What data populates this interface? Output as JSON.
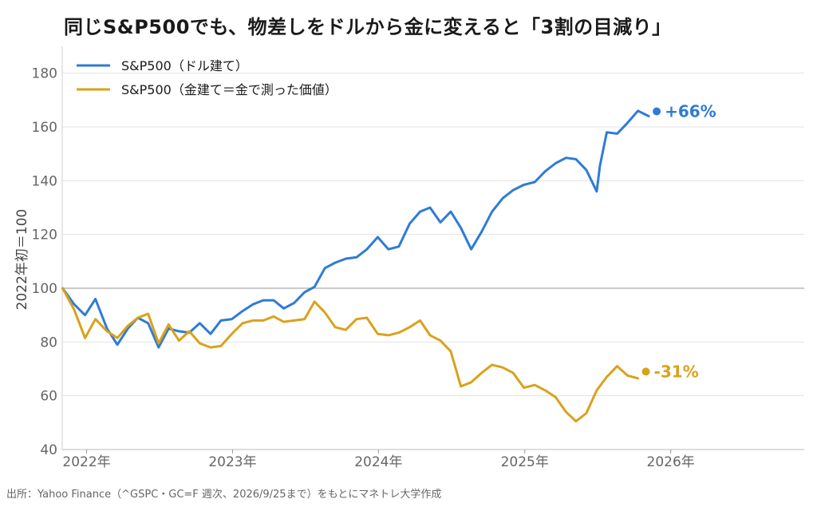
{
  "title": "同じS&P500でも、物差しをドルから金に変えると「3割の目減り」",
  "source": "出所：Yahoo Finance（^GSPC・GC=F 週次、2026/9/25まで）をもとにマネトレ大学作成",
  "chart_data": {
    "type": "line",
    "ylabel": "2022年初＝100",
    "ylim": [
      40,
      190
    ],
    "yticks": [
      40,
      60,
      80,
      100,
      120,
      140,
      160,
      180
    ],
    "x_start": "2021-11",
    "x_end": "2026-12",
    "x_ticks": [
      {
        "date": "2022-01",
        "label": "2022年"
      },
      {
        "date": "2023-01",
        "label": "2023年"
      },
      {
        "date": "2024-01",
        "label": "2024年"
      },
      {
        "date": "2025-01",
        "label": "2025年"
      },
      {
        "date": "2026-01",
        "label": "2026年"
      }
    ],
    "grid": true,
    "reference_line": 100,
    "legend_position": "top-left",
    "series": [
      {
        "name": "S&P500（ドル建て）",
        "color": "#2f7bd6",
        "end_label": "+66%",
        "end_marker": 165.8,
        "points": [
          [
            "2021-11-02",
            100.0
          ],
          [
            "2021-12-01",
            94.0
          ],
          [
            "2021-12-28",
            90.0
          ],
          [
            "2022-01-23",
            96.0
          ],
          [
            "2022-02-21",
            85.0
          ],
          [
            "2022-03-19",
            79.0
          ],
          [
            "2022-04-14",
            85.0
          ],
          [
            "2022-05-09",
            89.0
          ],
          [
            "2022-06-04",
            87.0
          ],
          [
            "2022-06-30",
            78.0
          ],
          [
            "2022-07-25",
            85.0
          ],
          [
            "2022-08-20",
            84.0
          ],
          [
            "2022-09-15",
            83.5
          ],
          [
            "2022-10-11",
            87.0
          ],
          [
            "2022-11-07",
            83.0
          ],
          [
            "2022-12-03",
            88.0
          ],
          [
            "2022-12-30",
            88.5
          ],
          [
            "2023-01-26",
            91.5
          ],
          [
            "2023-02-21",
            94.0
          ],
          [
            "2023-03-19",
            95.5
          ],
          [
            "2023-04-14",
            95.5
          ],
          [
            "2023-05-09",
            92.5
          ],
          [
            "2023-06-04",
            94.5
          ],
          [
            "2023-06-30",
            98.5
          ],
          [
            "2023-07-25",
            100.5
          ],
          [
            "2023-08-20",
            107.5
          ],
          [
            "2023-09-15",
            109.5
          ],
          [
            "2023-10-11",
            111.0
          ],
          [
            "2023-11-07",
            111.5
          ],
          [
            "2023-12-03",
            114.5
          ],
          [
            "2023-12-30",
            119.0
          ],
          [
            "2024-01-26",
            114.5
          ],
          [
            "2024-02-21",
            115.5
          ],
          [
            "2024-03-19",
            124.0
          ],
          [
            "2024-04-14",
            128.5
          ],
          [
            "2024-05-09",
            130.0
          ],
          [
            "2024-06-04",
            124.5
          ],
          [
            "2024-06-30",
            128.5
          ],
          [
            "2024-07-25",
            122.5
          ],
          [
            "2024-08-20",
            114.5
          ],
          [
            "2024-09-15",
            121.0
          ],
          [
            "2024-10-11",
            128.5
          ],
          [
            "2024-11-07",
            133.5
          ],
          [
            "2024-12-03",
            136.5
          ],
          [
            "2024-12-30",
            138.5
          ],
          [
            "2025-01-26",
            139.5
          ],
          [
            "2025-02-21",
            143.5
          ],
          [
            "2025-03-19",
            146.5
          ],
          [
            "2025-04-14",
            148.5
          ],
          [
            "2025-05-09",
            148.0
          ],
          [
            "2025-06-04",
            144.0
          ],
          [
            "2025-06-30",
            136.0
          ],
          [
            "2025-07-08",
            145.5
          ],
          [
            "2025-07-25",
            158.0
          ],
          [
            "2025-08-20",
            157.5
          ],
          [
            "2025-09-15",
            161.5
          ],
          [
            "2025-10-11",
            166.0
          ],
          [
            "2025-11-07",
            164.0
          ]
        ]
      },
      {
        "name": "S&P500（金建て＝金で測った価値）",
        "color": "#d9a21b",
        "end_label": "-31%",
        "end_marker": 69.0,
        "points": [
          [
            "2021-11-02",
            100.0
          ],
          [
            "2021-12-01",
            92.0
          ],
          [
            "2021-12-28",
            81.5
          ],
          [
            "2022-01-23",
            88.5
          ],
          [
            "2022-02-21",
            84.0
          ],
          [
            "2022-03-19",
            81.5
          ],
          [
            "2022-04-14",
            86.0
          ],
          [
            "2022-05-09",
            89.0
          ],
          [
            "2022-06-04",
            90.5
          ],
          [
            "2022-06-30",
            79.5
          ],
          [
            "2022-07-25",
            86.5
          ],
          [
            "2022-08-20",
            80.5
          ],
          [
            "2022-09-15",
            84.0
          ],
          [
            "2022-10-11",
            79.5
          ],
          [
            "2022-11-07",
            78.0
          ],
          [
            "2022-12-03",
            78.5
          ],
          [
            "2022-12-30",
            83.0
          ],
          [
            "2023-01-26",
            87.0
          ],
          [
            "2023-02-21",
            88.0
          ],
          [
            "2023-03-19",
            88.0
          ],
          [
            "2023-04-14",
            89.5
          ],
          [
            "2023-05-09",
            87.5
          ],
          [
            "2023-06-04",
            88.0
          ],
          [
            "2023-06-30",
            88.5
          ],
          [
            "2023-07-25",
            95.0
          ],
          [
            "2023-08-20",
            91.0
          ],
          [
            "2023-09-15",
            85.5
          ],
          [
            "2023-10-11",
            84.5
          ],
          [
            "2023-11-07",
            88.5
          ],
          [
            "2023-12-03",
            89.0
          ],
          [
            "2023-12-30",
            83.0
          ],
          [
            "2024-01-26",
            82.5
          ],
          [
            "2024-02-21",
            83.5
          ],
          [
            "2024-03-19",
            85.5
          ],
          [
            "2024-04-14",
            88.0
          ],
          [
            "2024-05-09",
            82.5
          ],
          [
            "2024-06-04",
            80.5
          ],
          [
            "2024-06-30",
            76.5
          ],
          [
            "2024-07-25",
            63.5
          ],
          [
            "2024-08-20",
            65.0
          ],
          [
            "2024-09-15",
            68.5
          ],
          [
            "2024-10-11",
            71.5
          ],
          [
            "2024-11-07",
            70.5
          ],
          [
            "2024-12-03",
            68.5
          ],
          [
            "2024-12-30",
            63.0
          ],
          [
            "2025-01-26",
            64.0
          ],
          [
            "2025-02-21",
            62.0
          ],
          [
            "2025-03-19",
            59.5
          ],
          [
            "2025-04-14",
            54.0
          ],
          [
            "2025-05-09",
            50.5
          ],
          [
            "2025-06-04",
            53.5
          ],
          [
            "2025-06-30",
            62.0
          ],
          [
            "2025-07-25",
            67.0
          ],
          [
            "2025-08-20",
            71.0
          ],
          [
            "2025-09-15",
            67.5
          ],
          [
            "2025-10-11",
            66.5
          ]
        ]
      }
    ]
  }
}
